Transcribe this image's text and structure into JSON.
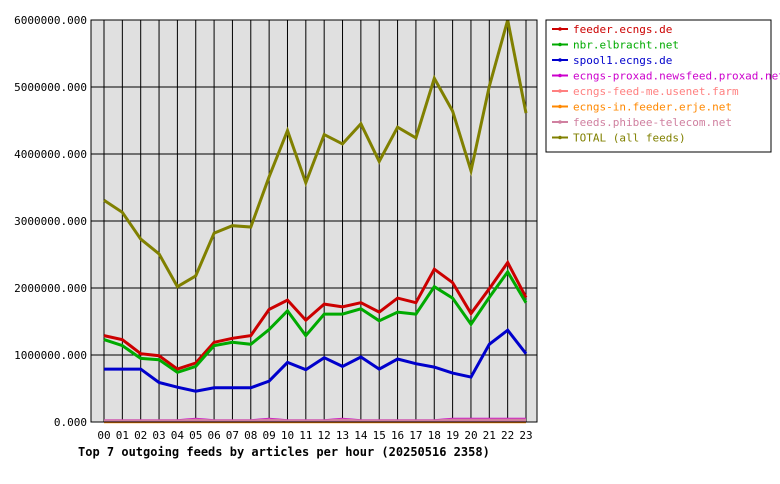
{
  "chart_data": {
    "type": "line",
    "title": "Top 7 outgoing feeds by articles per hour (20250516 2358)",
    "xlabel": "",
    "ylabel": "",
    "categories": [
      "00",
      "01",
      "02",
      "03",
      "04",
      "05",
      "06",
      "07",
      "08",
      "09",
      "10",
      "11",
      "12",
      "13",
      "14",
      "15",
      "16",
      "17",
      "18",
      "19",
      "20",
      "21",
      "22",
      "23"
    ],
    "ylim": [
      0,
      6000000
    ],
    "yticks": [
      0,
      1000000,
      2000000,
      3000000,
      4000000,
      5000000,
      6000000
    ],
    "ytick_labels": [
      "0.000",
      "1000000.000",
      "2000000.000",
      "3000000.000",
      "4000000.000",
      "5000000.000",
      "6000000.000"
    ],
    "grid": true,
    "legend_position": "top-right",
    "series": [
      {
        "name": "feeder.ecngs.de",
        "color": "#cc0000",
        "values": [
          1290000,
          1230000,
          1020000,
          990000,
          790000,
          880000,
          1190000,
          1250000,
          1290000,
          1680000,
          1820000,
          1520000,
          1760000,
          1720000,
          1780000,
          1640000,
          1850000,
          1780000,
          2280000,
          2080000,
          1620000,
          1990000,
          2380000,
          1860000
        ]
      },
      {
        "name": "nbr.elbracht.net",
        "color": "#00aa00",
        "values": [
          1230000,
          1140000,
          950000,
          930000,
          740000,
          830000,
          1140000,
          1190000,
          1160000,
          1380000,
          1660000,
          1290000,
          1610000,
          1610000,
          1690000,
          1510000,
          1640000,
          1610000,
          2020000,
          1850000,
          1460000,
          1860000,
          2240000,
          1780000
        ]
      },
      {
        "name": "spool1.ecngs.de",
        "color": "#0000cc",
        "values": [
          790000,
          790000,
          790000,
          590000,
          520000,
          460000,
          510000,
          510000,
          510000,
          610000,
          890000,
          780000,
          960000,
          830000,
          970000,
          790000,
          940000,
          870000,
          820000,
          730000,
          670000,
          1160000,
          1370000,
          1020000
        ]
      },
      {
        "name": "ecngs-proxad.newsfeed.proxad.net",
        "color": "#cc00cc",
        "values": [
          20000,
          20000,
          20000,
          20000,
          20000,
          40000,
          20000,
          20000,
          20000,
          40000,
          20000,
          20000,
          20000,
          40000,
          20000,
          20000,
          20000,
          20000,
          20000,
          40000,
          40000,
          40000,
          40000,
          40000
        ]
      },
      {
        "name": "ecngs-feed-me.usenet.farm",
        "color": "#ff8080",
        "values": [
          10000,
          10000,
          10000,
          10000,
          10000,
          10000,
          10000,
          10000,
          10000,
          10000,
          10000,
          10000,
          10000,
          10000,
          10000,
          10000,
          10000,
          10000,
          10000,
          10000,
          10000,
          10000,
          10000,
          10000
        ]
      },
      {
        "name": "ecngs-in.feeder.erje.net",
        "color": "#ff8800",
        "values": [
          5000,
          5000,
          5000,
          5000,
          5000,
          5000,
          5000,
          5000,
          5000,
          5000,
          5000,
          5000,
          5000,
          5000,
          5000,
          5000,
          5000,
          5000,
          5000,
          5000,
          5000,
          5000,
          5000,
          5000
        ]
      },
      {
        "name": "feeds.phibee-telecom.net",
        "color": "#d080a0",
        "values": [
          15000,
          15000,
          15000,
          15000,
          15000,
          30000,
          15000,
          15000,
          15000,
          30000,
          15000,
          15000,
          15000,
          30000,
          15000,
          15000,
          15000,
          15000,
          15000,
          30000,
          30000,
          30000,
          30000,
          30000
        ]
      },
      {
        "name": "TOTAL (all feeds)",
        "color": "#808000",
        "values": [
          3310000,
          3130000,
          2730000,
          2510000,
          2020000,
          2180000,
          2820000,
          2930000,
          2910000,
          3660000,
          4350000,
          3570000,
          4290000,
          4150000,
          4450000,
          3890000,
          4400000,
          4240000,
          5130000,
          4640000,
          3750000,
          5010000,
          6000000,
          4610000
        ]
      }
    ]
  }
}
